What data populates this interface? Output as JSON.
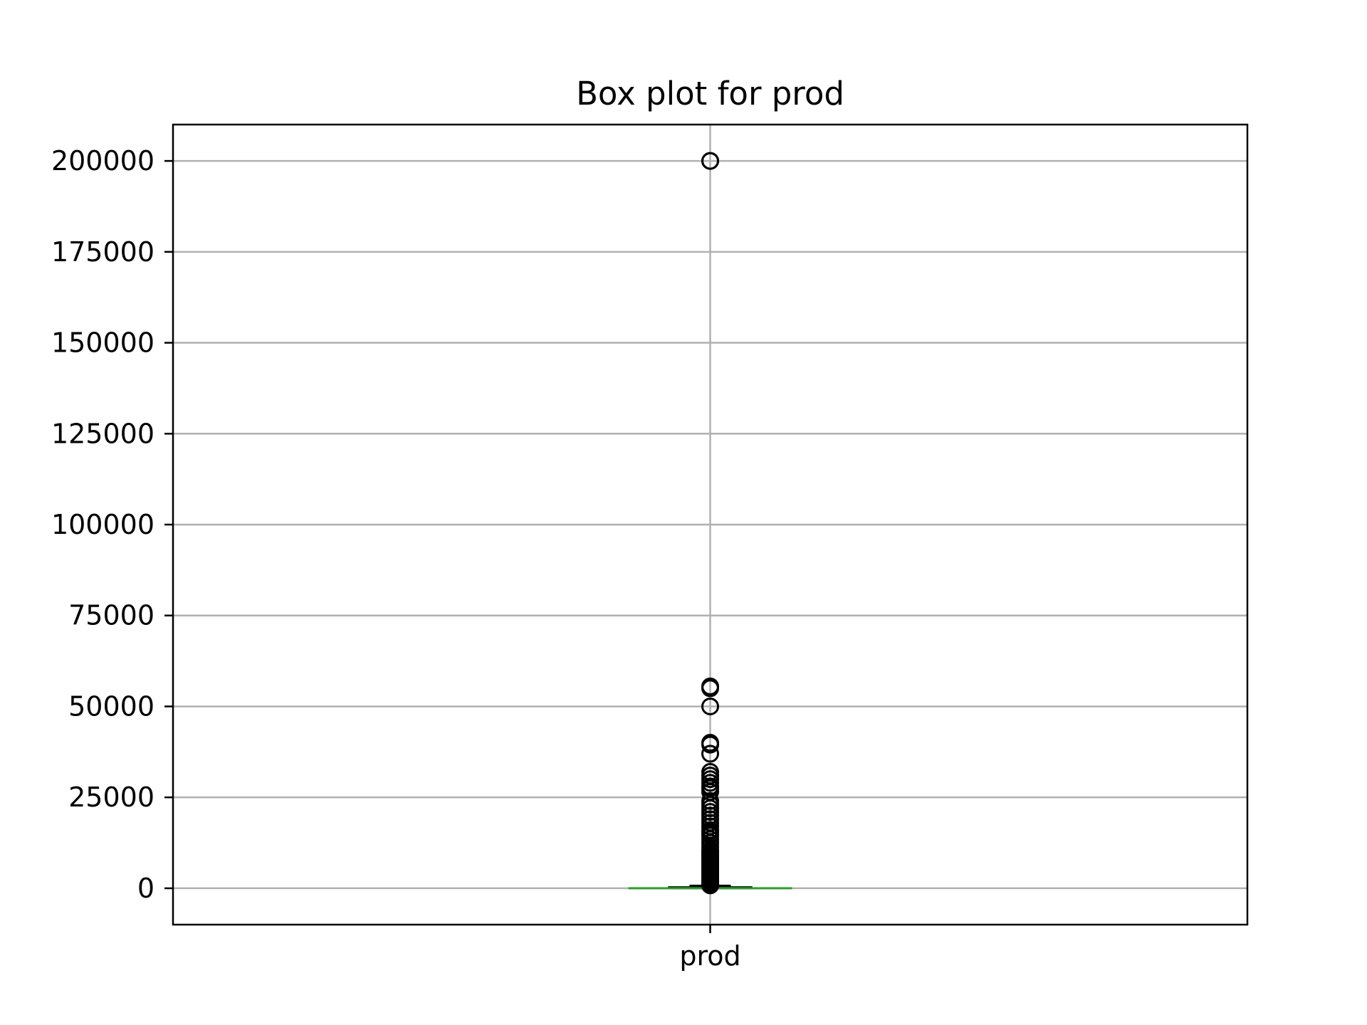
{
  "chart_data": {
    "type": "box",
    "title": "Box plot for prod",
    "xlabel": "",
    "ylabel": "",
    "categories": [
      "prod"
    ],
    "ylim": [
      -10000,
      210000
    ],
    "yticks": [
      0,
      25000,
      50000,
      75000,
      100000,
      125000,
      150000,
      175000,
      200000
    ],
    "ytick_labels": [
      "0",
      "25000",
      "50000",
      "75000",
      "100000",
      "125000",
      "150000",
      "175000",
      "200000"
    ],
    "grid": true,
    "box": {
      "whisker_low": 0,
      "q1": 0,
      "median": 0,
      "q3": 300,
      "whisker_high": 750
    },
    "outliers": [
      200000,
      200000,
      55500,
      55000,
      50000,
      40000,
      39500,
      37000,
      32000,
      31000,
      30000,
      29000,
      28000,
      27500,
      26500,
      24000,
      23000,
      22000,
      21000,
      20000,
      19000,
      18000,
      17000,
      16000,
      15500,
      15000,
      14500,
      13500,
      12500,
      11500,
      10500,
      10000,
      9500,
      9000,
      8500,
      8000,
      7500,
      7000,
      6500,
      6000,
      5500,
      5000,
      4500,
      4000,
      3500,
      3000,
      2500,
      2000,
      1500,
      1200,
      1000,
      900,
      800
    ],
    "colors": {
      "box": "#000000",
      "median": "#2ca02c",
      "grid": "#b0b0b0",
      "outlier": "#000000"
    }
  }
}
